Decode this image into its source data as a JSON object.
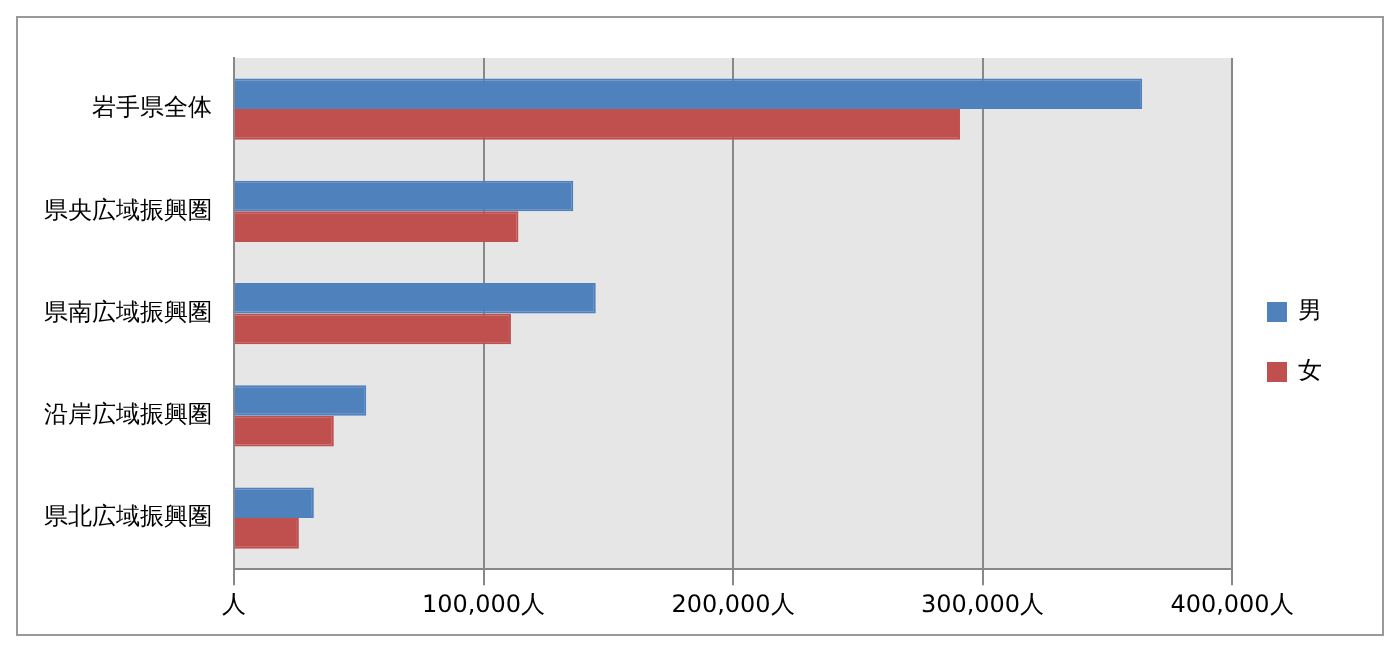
{
  "chart_data": {
    "type": "bar",
    "orientation": "horizontal",
    "categories": [
      "岩手県全体",
      "県央広域振興圏",
      "県南広域振興圏",
      "沿岸広域振興圏",
      "県北広域振興圏"
    ],
    "series": [
      {
        "name": "男",
        "color": "#4f81bd",
        "values": [
          364000,
          136000,
          145000,
          53000,
          32000
        ]
      },
      {
        "name": "女",
        "color": "#c0504d",
        "values": [
          291000,
          114000,
          111000,
          40000,
          26000
        ]
      }
    ],
    "xlim": [
      0,
      400000
    ],
    "xticks": [
      {
        "value": 0,
        "label": "人"
      },
      {
        "value": 100000,
        "label": "100,000人"
      },
      {
        "value": 200000,
        "label": "200,000人"
      },
      {
        "value": 300000,
        "label": "300,000人"
      },
      {
        "value": 400000,
        "label": "400,000人"
      }
    ],
    "grid": "x",
    "legend": "right"
  }
}
